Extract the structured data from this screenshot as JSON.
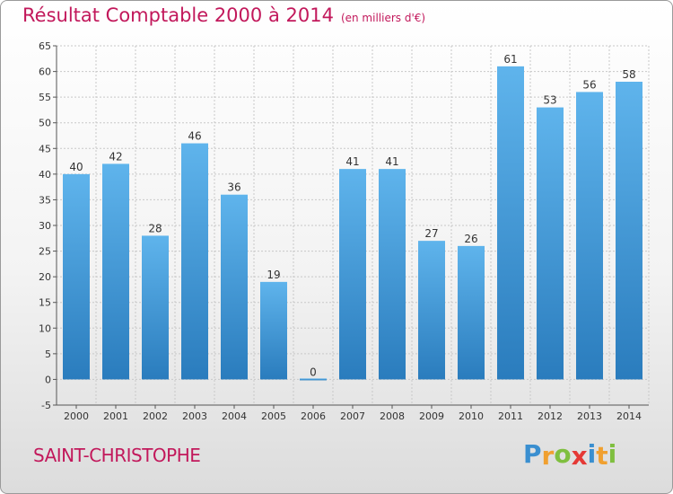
{
  "title": "Résultat Comptable 2000 à 2014",
  "title_unit": "(en milliers d'€)",
  "commune": "SAINT-CHRISTOPHE",
  "brand": {
    "text": "Proxiti",
    "letters": [
      "P",
      "r",
      "o",
      "x",
      "i",
      "t",
      "i"
    ],
    "colors": [
      "#3a8fd0",
      "#f0a030",
      "#7fbf3f",
      "#e53935",
      "#3a8fd0",
      "#f0a030",
      "#7fbf3f"
    ]
  },
  "colors": {
    "bar_top": "#5fb4ec",
    "bar_bottom": "#2a7cbd",
    "title": "#c2185b",
    "grid": "#c8c8c8"
  },
  "chart_data": {
    "type": "bar",
    "title": "Résultat Comptable 2000 à 2014",
    "xlabel": "",
    "ylabel": "",
    "categories": [
      "2000",
      "2001",
      "2002",
      "2003",
      "2004",
      "2005",
      "2006",
      "2007",
      "2008",
      "2009",
      "2010",
      "2011",
      "2012",
      "2013",
      "2014"
    ],
    "values": [
      40,
      42,
      28,
      46,
      36,
      19,
      0,
      41,
      41,
      27,
      26,
      61,
      53,
      56,
      58
    ],
    "data_labels": [
      "40",
      "42",
      "28",
      "46",
      "36",
      "19",
      "0",
      "41",
      "41",
      "27",
      "26",
      "61",
      "53",
      "56",
      "58"
    ],
    "ylim": [
      -5,
      65
    ],
    "yticks": [
      -5,
      0,
      5,
      10,
      15,
      20,
      25,
      30,
      35,
      40,
      45,
      50,
      55,
      60,
      65
    ],
    "ytick_labels": [
      "-5",
      "0",
      "5",
      "10",
      "15",
      "20",
      "25",
      "30",
      "35",
      "40",
      "45",
      "50",
      "55",
      "60",
      "65"
    ],
    "grid": true,
    "legend": "none"
  }
}
